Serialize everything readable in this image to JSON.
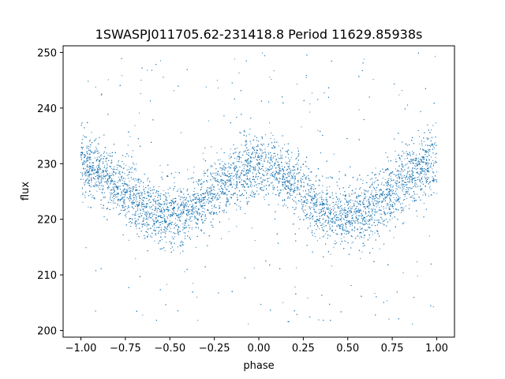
{
  "chart_data": {
    "type": "scatter",
    "title": "1SWASPJ011705.62-231418.8 Period 11629.85938s",
    "xlabel": "phase",
    "ylabel": "flux",
    "xlim": [
      -1.1,
      1.1
    ],
    "ylim": [
      198.8,
      251.2
    ],
    "xticks": [
      {
        "value": -1.0,
        "label": "−1.00"
      },
      {
        "value": -0.75,
        "label": "−0.75"
      },
      {
        "value": -0.5,
        "label": "−0.50"
      },
      {
        "value": -0.25,
        "label": "−0.25"
      },
      {
        "value": 0.0,
        "label": "0.00"
      },
      {
        "value": 0.25,
        "label": "0.25"
      },
      {
        "value": 0.5,
        "label": "0.50"
      },
      {
        "value": 0.75,
        "label": "0.75"
      },
      {
        "value": 1.0,
        "label": "1.00"
      }
    ],
    "yticks": [
      {
        "value": 200,
        "label": "200"
      },
      {
        "value": 210,
        "label": "210"
      },
      {
        "value": 220,
        "label": "220"
      },
      {
        "value": 230,
        "label": "230"
      },
      {
        "value": 240,
        "label": "240"
      },
      {
        "value": 250,
        "label": "250"
      }
    ],
    "grid": false,
    "series": [
      {
        "color": "#1f77b4",
        "x_range": [
          -1.0,
          1.0
        ],
        "y_clip": [
          201,
          250
        ],
        "model": {
          "mean_flux": 225,
          "amplitude": 4.5,
          "cycles_per_unit_phase": 2,
          "peak_phases": [
            -1.0,
            0.0,
            1.0
          ],
          "trough_phases": [
            -0.5,
            0.5
          ],
          "core_spread_sd": 2.8
        },
        "points": [
          [
            -1.0,
            228.4
          ],
          [
            -0.95,
            229.2
          ],
          [
            -0.9,
            228.0
          ],
          [
            -0.85,
            227.1
          ],
          [
            -0.8,
            226.0
          ],
          [
            -0.75,
            225.0
          ],
          [
            -0.7,
            223.6
          ],
          [
            -0.65,
            222.3
          ],
          [
            -0.6,
            221.2
          ],
          [
            -0.55,
            220.7
          ],
          [
            -0.5,
            220.5
          ],
          [
            -0.45,
            220.9
          ],
          [
            -0.4,
            221.8
          ],
          [
            -0.35,
            222.9
          ],
          [
            -0.3,
            224.1
          ],
          [
            -0.25,
            225.2
          ],
          [
            -0.2,
            226.3
          ],
          [
            -0.15,
            227.4
          ],
          [
            -0.1,
            228.3
          ],
          [
            -0.05,
            229.0
          ],
          [
            0.0,
            229.4
          ],
          [
            0.05,
            229.1
          ],
          [
            0.1,
            228.4
          ],
          [
            0.15,
            227.5
          ],
          [
            0.2,
            226.4
          ],
          [
            0.25,
            225.1
          ],
          [
            0.3,
            223.9
          ],
          [
            0.35,
            222.7
          ],
          [
            0.4,
            221.6
          ],
          [
            0.45,
            220.8
          ],
          [
            0.5,
            220.4
          ],
          [
            0.55,
            220.7
          ],
          [
            0.6,
            221.3
          ],
          [
            0.65,
            222.4
          ],
          [
            0.7,
            223.7
          ],
          [
            0.75,
            225.0
          ],
          [
            0.8,
            226.2
          ],
          [
            0.85,
            227.2
          ],
          [
            0.9,
            228.1
          ],
          [
            0.95,
            228.9
          ],
          [
            1.0,
            228.5
          ]
        ]
      }
    ]
  }
}
